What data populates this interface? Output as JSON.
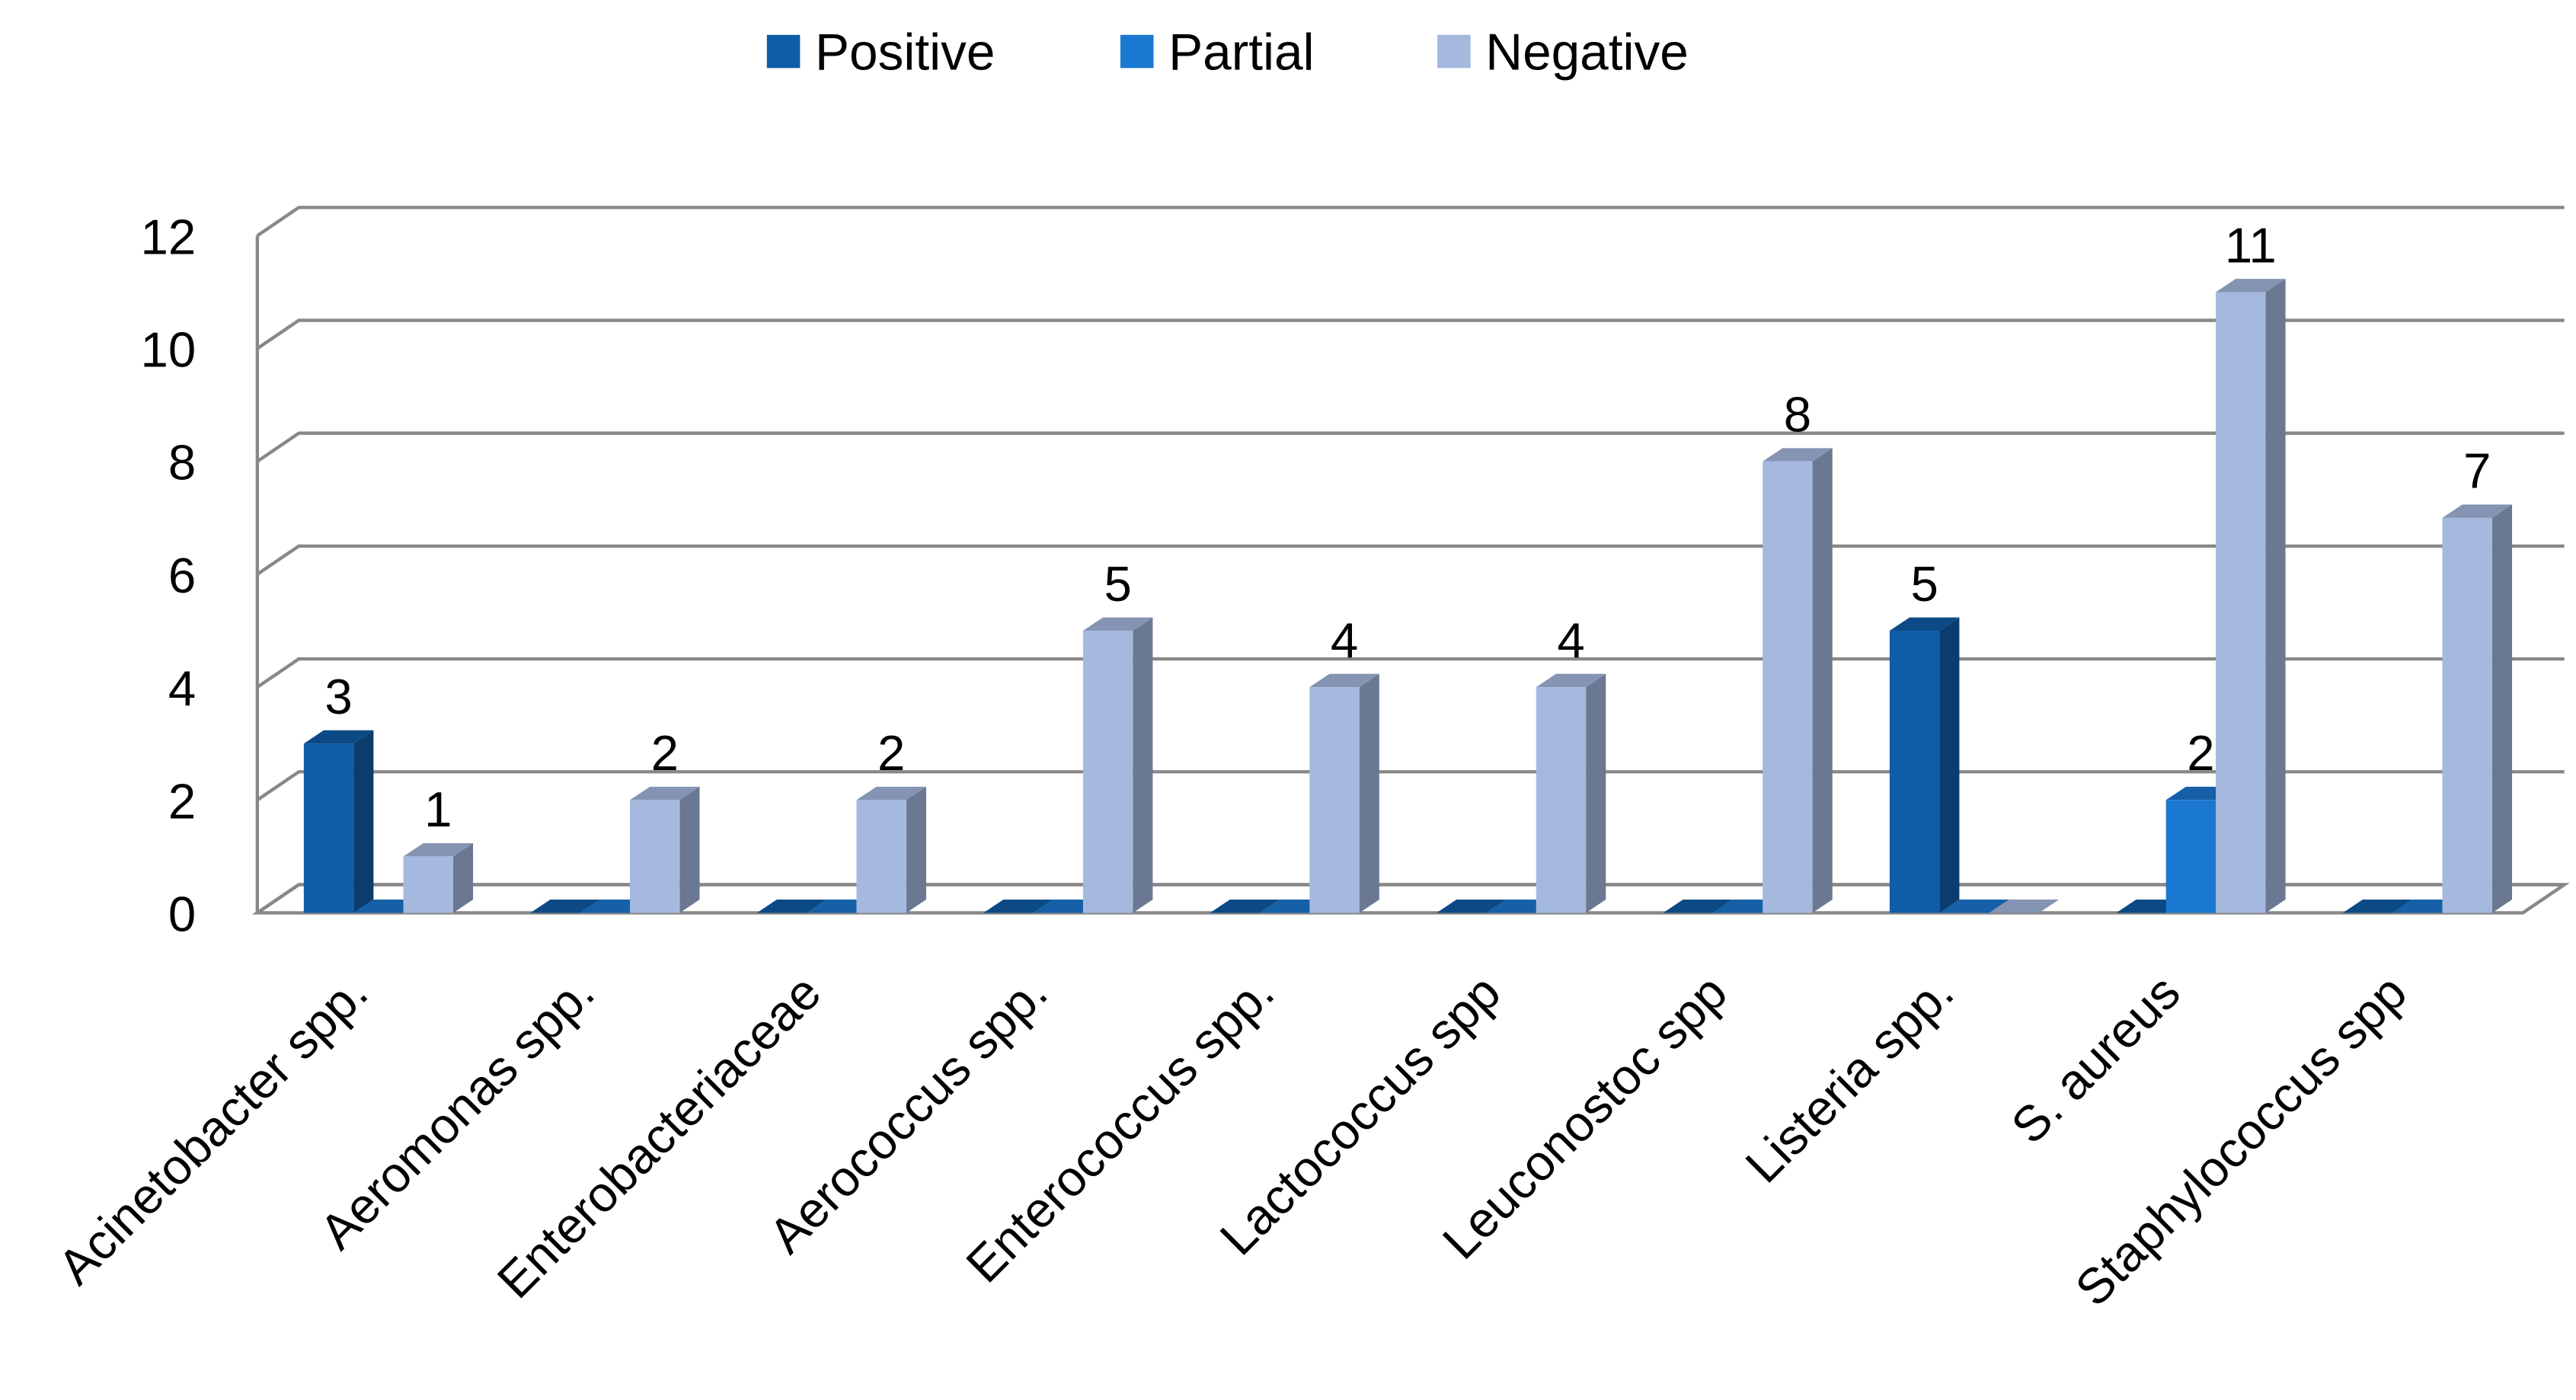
{
  "chart_data": {
    "type": "bar3d",
    "categories": [
      "Acinetobacter spp.",
      "Aeromonas spp.",
      "Enterobacteriaceae",
      "Aerococcus spp.",
      "Enterococcus spp.",
      "Lactococcus spp",
      "Leuconostoc spp",
      "Listeria spp.",
      "S. aureus",
      "Staphylococcus spp"
    ],
    "series": [
      {
        "name": "Positive",
        "color": "#0f5ca8",
        "values": [
          3,
          0,
          0,
          0,
          0,
          0,
          0,
          5,
          0,
          0
        ]
      },
      {
        "name": "Partial",
        "color": "#1a78d0",
        "values": [
          0,
          0,
          0,
          0,
          0,
          0,
          0,
          0,
          2,
          0
        ]
      },
      {
        "name": "Negative",
        "color": "#a5b9df",
        "values": [
          1,
          2,
          2,
          5,
          4,
          4,
          8,
          0,
          11,
          7
        ]
      }
    ],
    "ylim": [
      0,
      12
    ],
    "yticks": [
      0,
      2,
      4,
      6,
      8,
      10,
      12
    ],
    "grid": true,
    "legend": "top"
  }
}
